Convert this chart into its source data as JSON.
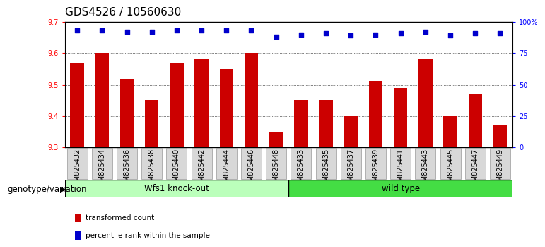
{
  "title": "GDS4526 / 10560630",
  "samples": [
    "GSM825432",
    "GSM825434",
    "GSM825436",
    "GSM825438",
    "GSM825440",
    "GSM825442",
    "GSM825444",
    "GSM825446",
    "GSM825448",
    "GSM825433",
    "GSM825435",
    "GSM825437",
    "GSM825439",
    "GSM825441",
    "GSM825443",
    "GSM825445",
    "GSM825447",
    "GSM825449"
  ],
  "bar_values": [
    9.57,
    9.6,
    9.52,
    9.45,
    9.57,
    9.58,
    9.55,
    9.6,
    9.35,
    9.45,
    9.45,
    9.4,
    9.51,
    9.49,
    9.58,
    9.4,
    9.47,
    9.37
  ],
  "percentile_values": [
    93,
    93,
    92,
    92,
    93,
    93,
    93,
    93,
    88,
    90,
    91,
    89,
    90,
    91,
    92,
    89,
    91,
    91
  ],
  "bar_color": "#cc0000",
  "dot_color": "#0000cc",
  "ylim_left": [
    9.3,
    9.7
  ],
  "ylim_right": [
    0,
    100
  ],
  "yticks_left": [
    9.3,
    9.4,
    9.5,
    9.6,
    9.7
  ],
  "yticks_right": [
    0,
    25,
    50,
    75,
    100
  ],
  "ytick_labels_right": [
    "0",
    "25",
    "50",
    "75",
    "100%"
  ],
  "group1_label": "Wfs1 knock-out",
  "group2_label": "wild type",
  "group1_color": "#bbffbb",
  "group2_color": "#44dd44",
  "group1_count": 9,
  "xlabel_left": "genotype/variation",
  "legend_items": [
    "transformed count",
    "percentile rank within the sample"
  ],
  "legend_colors": [
    "#cc0000",
    "#0000cc"
  ],
  "tick_label_bg": "#d8d8d8",
  "title_fontsize": 11,
  "tick_fontsize": 7,
  "label_fontsize": 8.5
}
